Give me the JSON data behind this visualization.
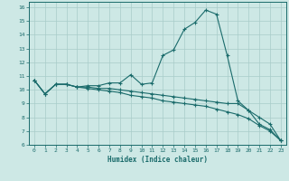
{
  "xlabel": "Humidex (Indice chaleur)",
  "bg_color": "#cde8e5",
  "grid_color": "#a8ccc9",
  "line_color": "#1a6b6b",
  "xlim": [
    -0.5,
    23.5
  ],
  "ylim": [
    6,
    16.4
  ],
  "yticks": [
    6,
    7,
    8,
    9,
    10,
    11,
    12,
    13,
    14,
    15,
    16
  ],
  "xticks": [
    0,
    1,
    2,
    3,
    4,
    5,
    6,
    7,
    8,
    9,
    10,
    11,
    12,
    13,
    14,
    15,
    16,
    17,
    18,
    19,
    20,
    21,
    22,
    23
  ],
  "line1_x": [
    0,
    1,
    2,
    3,
    4,
    5,
    6,
    7,
    8,
    9,
    10,
    11,
    12,
    13,
    14,
    15,
    16,
    17,
    18,
    19,
    20,
    21,
    22,
    23
  ],
  "line1_y": [
    10.7,
    9.7,
    10.4,
    10.4,
    10.2,
    10.3,
    10.3,
    10.5,
    10.5,
    11.1,
    10.4,
    10.5,
    12.5,
    12.9,
    14.4,
    14.9,
    15.8,
    15.5,
    12.5,
    9.2,
    8.5,
    7.5,
    7.1,
    6.3
  ],
  "line2_x": [
    0,
    1,
    2,
    3,
    4,
    5,
    6,
    7,
    8,
    9,
    10,
    11,
    12,
    13,
    14,
    15,
    16,
    17,
    18,
    19,
    20,
    21,
    22,
    23
  ],
  "line2_y": [
    10.7,
    9.7,
    10.4,
    10.4,
    10.2,
    10.2,
    10.1,
    10.1,
    10.0,
    9.9,
    9.8,
    9.7,
    9.6,
    9.5,
    9.4,
    9.3,
    9.2,
    9.1,
    9.0,
    9.0,
    8.5,
    8.0,
    7.5,
    6.3
  ],
  "line3_x": [
    0,
    1,
    2,
    3,
    4,
    5,
    6,
    7,
    8,
    9,
    10,
    11,
    12,
    13,
    14,
    15,
    16,
    17,
    18,
    19,
    20,
    21,
    22,
    23
  ],
  "line3_y": [
    10.7,
    9.7,
    10.4,
    10.4,
    10.2,
    10.1,
    10.0,
    9.9,
    9.8,
    9.6,
    9.5,
    9.4,
    9.2,
    9.1,
    9.0,
    8.9,
    8.8,
    8.6,
    8.4,
    8.2,
    7.9,
    7.4,
    7.0,
    6.3
  ]
}
